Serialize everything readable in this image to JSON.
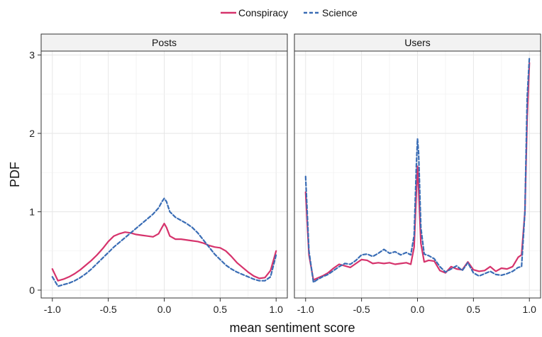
{
  "chart_data": {
    "type": "line",
    "xlabel": "mean sentiment score",
    "ylabel": "PDF",
    "xlim": [
      -1.1,
      1.1
    ],
    "ylim": [
      -0.1,
      3.05
    ],
    "x_ticks": [
      "-1.0",
      "-0.5",
      "0.0",
      "0.5",
      "1.0"
    ],
    "x_tick_values": [
      -1.0,
      -0.5,
      0.0,
      0.5,
      1.0
    ],
    "y_ticks": [
      "0",
      "1",
      "2",
      "3"
    ],
    "y_tick_values": [
      0,
      1,
      2,
      3
    ],
    "grid": true,
    "legend_position": "top",
    "legend": [
      {
        "name": "Conspiracy",
        "color": "#d6336c",
        "style": "solid"
      },
      {
        "name": "Science",
        "color": "#3a6db5",
        "style": "dashed"
      }
    ],
    "panels": [
      {
        "title": "Posts",
        "series": [
          {
            "name": "Conspiracy",
            "x": [
              -1.0,
              -0.95,
              -0.9,
              -0.85,
              -0.8,
              -0.75,
              -0.7,
              -0.65,
              -0.6,
              -0.55,
              -0.5,
              -0.45,
              -0.4,
              -0.35,
              -0.3,
              -0.25,
              -0.2,
              -0.15,
              -0.1,
              -0.05,
              -0.02,
              0.0,
              0.02,
              0.05,
              0.1,
              0.15,
              0.2,
              0.25,
              0.3,
              0.35,
              0.4,
              0.45,
              0.5,
              0.55,
              0.6,
              0.65,
              0.7,
              0.75,
              0.8,
              0.85,
              0.9,
              0.95,
              1.0
            ],
            "y": [
              0.27,
              0.12,
              0.14,
              0.17,
              0.21,
              0.26,
              0.32,
              0.38,
              0.45,
              0.53,
              0.62,
              0.69,
              0.72,
              0.74,
              0.73,
              0.71,
              0.7,
              0.69,
              0.68,
              0.72,
              0.8,
              0.85,
              0.8,
              0.69,
              0.65,
              0.65,
              0.64,
              0.63,
              0.62,
              0.6,
              0.57,
              0.55,
              0.54,
              0.5,
              0.43,
              0.35,
              0.29,
              0.23,
              0.18,
              0.15,
              0.16,
              0.25,
              0.5
            ]
          },
          {
            "name": "Science",
            "x": [
              -1.0,
              -0.95,
              -0.9,
              -0.85,
              -0.8,
              -0.75,
              -0.7,
              -0.65,
              -0.6,
              -0.55,
              -0.5,
              -0.45,
              -0.4,
              -0.35,
              -0.3,
              -0.25,
              -0.2,
              -0.15,
              -0.1,
              -0.05,
              -0.02,
              0.0,
              0.02,
              0.05,
              0.1,
              0.15,
              0.2,
              0.25,
              0.3,
              0.35,
              0.4,
              0.45,
              0.5,
              0.55,
              0.6,
              0.65,
              0.7,
              0.75,
              0.8,
              0.85,
              0.9,
              0.95,
              1.0
            ],
            "y": [
              0.17,
              0.05,
              0.07,
              0.09,
              0.12,
              0.16,
              0.21,
              0.27,
              0.34,
              0.41,
              0.48,
              0.55,
              0.61,
              0.67,
              0.73,
              0.79,
              0.85,
              0.91,
              0.97,
              1.05,
              1.13,
              1.17,
              1.13,
              1.0,
              0.93,
              0.89,
              0.85,
              0.8,
              0.73,
              0.64,
              0.55,
              0.46,
              0.39,
              0.32,
              0.27,
              0.23,
              0.2,
              0.17,
              0.14,
              0.12,
              0.12,
              0.17,
              0.45
            ]
          }
        ]
      },
      {
        "title": "Users",
        "series": [
          {
            "name": "Conspiracy",
            "x": [
              -1.0,
              -0.97,
              -0.93,
              -0.9,
              -0.85,
              -0.8,
              -0.75,
              -0.7,
              -0.65,
              -0.6,
              -0.55,
              -0.5,
              -0.45,
              -0.4,
              -0.35,
              -0.3,
              -0.25,
              -0.2,
              -0.15,
              -0.1,
              -0.06,
              -0.03,
              -0.01,
              0.0,
              0.01,
              0.03,
              0.06,
              0.1,
              0.15,
              0.2,
              0.25,
              0.3,
              0.35,
              0.4,
              0.45,
              0.5,
              0.55,
              0.6,
              0.65,
              0.7,
              0.75,
              0.8,
              0.85,
              0.9,
              0.93,
              0.96,
              0.98,
              1.0
            ],
            "y": [
              1.25,
              0.45,
              0.13,
              0.15,
              0.18,
              0.22,
              0.28,
              0.33,
              0.31,
              0.29,
              0.34,
              0.39,
              0.38,
              0.34,
              0.35,
              0.34,
              0.35,
              0.33,
              0.34,
              0.35,
              0.33,
              0.55,
              1.25,
              1.58,
              1.3,
              0.6,
              0.36,
              0.38,
              0.37,
              0.25,
              0.22,
              0.3,
              0.27,
              0.26,
              0.36,
              0.26,
              0.24,
              0.25,
              0.3,
              0.24,
              0.28,
              0.27,
              0.3,
              0.42,
              0.45,
              1.0,
              2.2,
              2.9
            ]
          },
          {
            "name": "Science",
            "x": [
              -1.0,
              -0.97,
              -0.93,
              -0.9,
              -0.85,
              -0.8,
              -0.75,
              -0.7,
              -0.65,
              -0.6,
              -0.55,
              -0.5,
              -0.45,
              -0.4,
              -0.35,
              -0.3,
              -0.25,
              -0.2,
              -0.15,
              -0.1,
              -0.06,
              -0.03,
              -0.01,
              0.0,
              0.01,
              0.03,
              0.06,
              0.1,
              0.15,
              0.2,
              0.25,
              0.3,
              0.35,
              0.4,
              0.45,
              0.5,
              0.55,
              0.6,
              0.65,
              0.7,
              0.75,
              0.8,
              0.85,
              0.9,
              0.93,
              0.96,
              0.98,
              1.0
            ],
            "y": [
              1.45,
              0.5,
              0.1,
              0.13,
              0.17,
              0.2,
              0.25,
              0.3,
              0.34,
              0.33,
              0.38,
              0.45,
              0.46,
              0.43,
              0.47,
              0.52,
              0.47,
              0.49,
              0.45,
              0.48,
              0.45,
              0.7,
              1.6,
              1.93,
              1.75,
              0.8,
              0.46,
              0.44,
              0.4,
              0.3,
              0.23,
              0.27,
              0.31,
              0.25,
              0.35,
              0.22,
              0.18,
              0.21,
              0.24,
              0.2,
              0.19,
              0.21,
              0.24,
              0.29,
              0.3,
              1.0,
              2.45,
              2.97
            ]
          }
        ]
      }
    ]
  }
}
